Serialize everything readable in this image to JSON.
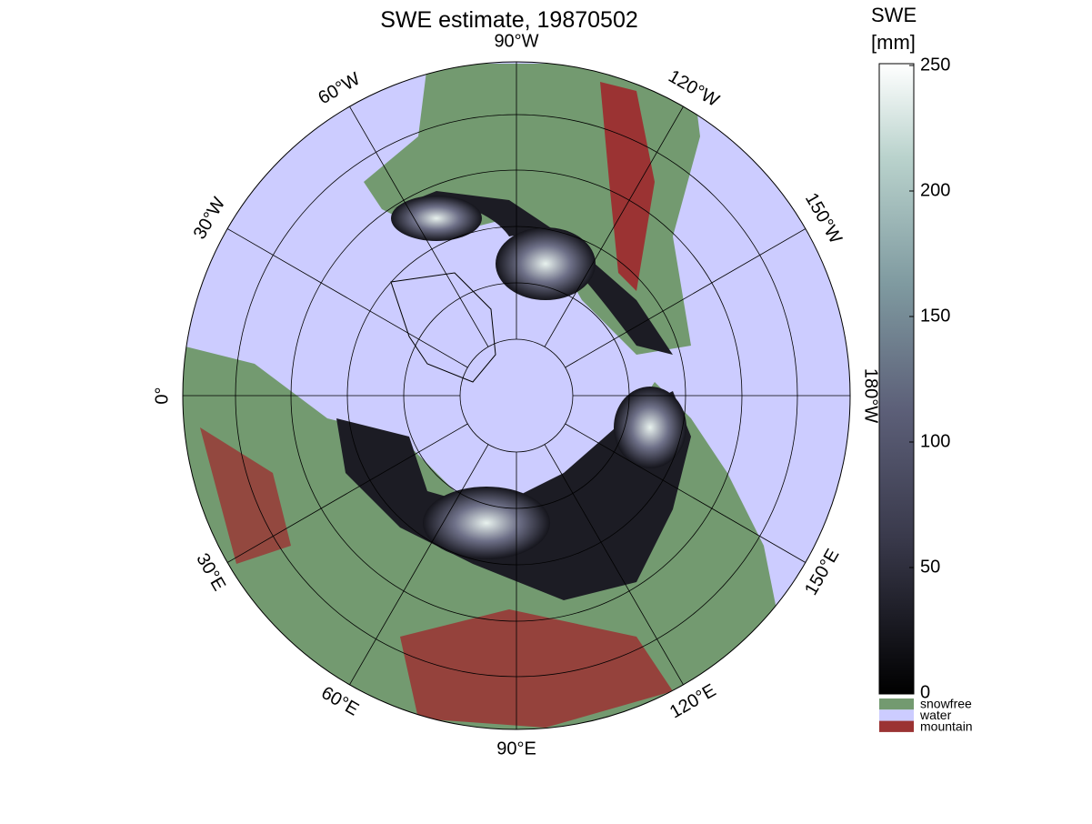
{
  "title": "SWE estimate, 19870502",
  "map": {
    "meridians": [
      {
        "value": -90,
        "label": "90°W"
      },
      {
        "value": -120,
        "label": "120°W"
      },
      {
        "value": -150,
        "label": "150°W"
      },
      {
        "value": 180,
        "label": "180°W"
      },
      {
        "value": 150,
        "label": "150°E"
      },
      {
        "value": 120,
        "label": "120°E"
      },
      {
        "value": 90,
        "label": "90°E"
      },
      {
        "value": 60,
        "label": "60°E"
      },
      {
        "value": 30,
        "label": "30°E"
      },
      {
        "value": 0,
        "label": "0°"
      },
      {
        "value": -30,
        "label": "30°W"
      },
      {
        "value": -60,
        "label": "60°W"
      }
    ]
  },
  "colorbar": {
    "label": [
      "SWE",
      "[mm]"
    ],
    "ylim": [
      0,
      250
    ],
    "yticks": [
      0,
      50,
      100,
      150,
      200,
      250
    ]
  },
  "legend": [
    {
      "name": "snowfree",
      "color": "#739a70"
    },
    {
      "name": "water",
      "color": "#ccccff"
    },
    {
      "name": "mountain",
      "color": "#9b3333"
    }
  ]
}
